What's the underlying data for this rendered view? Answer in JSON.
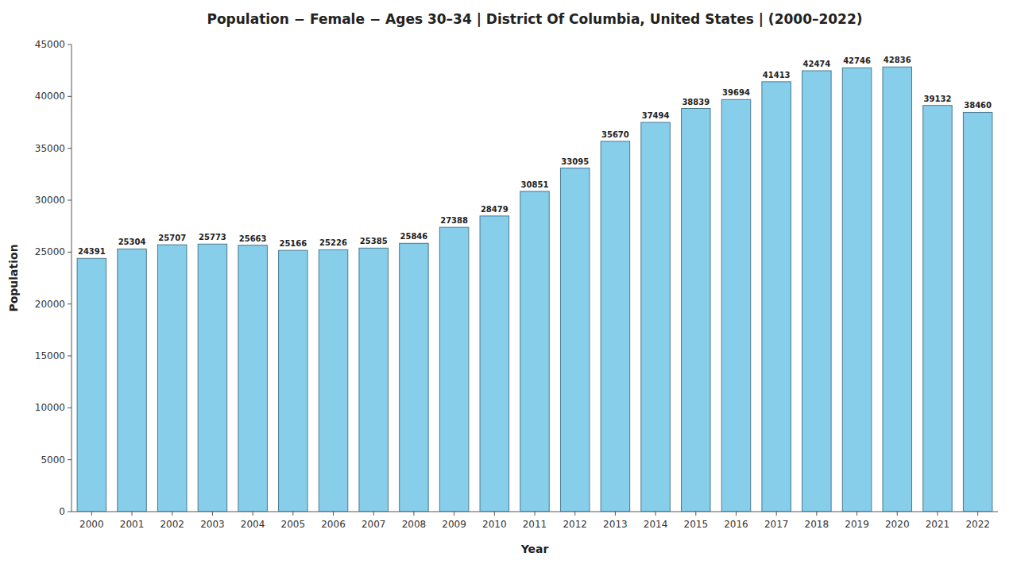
{
  "chart_data": {
    "type": "bar",
    "title": "Population − Female − Ages 30–34 | District Of Columbia, United States |  (2000–2022)",
    "x_label": "Year",
    "y_label": "Population",
    "categories": [
      "2000",
      "2001",
      "2002",
      "2003",
      "2004",
      "2005",
      "2006",
      "2007",
      "2008",
      "2009",
      "2010",
      "2011",
      "2012",
      "2013",
      "2014",
      "2015",
      "2016",
      "2017",
      "2018",
      "2019",
      "2020",
      "2021",
      "2022"
    ],
    "values": [
      24391,
      25304,
      25707,
      25773,
      25663,
      25166,
      25226,
      25385,
      25846,
      27388,
      28479,
      30851,
      33095,
      35670,
      37494,
      38839,
      39694,
      41413,
      42474,
      42746,
      42836,
      39132,
      38460
    ],
    "color": "#87ceeb",
    "ylim": [
      0,
      45000
    ],
    "yticks": [
      0,
      5000,
      10000,
      15000,
      20000,
      25000,
      30000,
      35000,
      40000,
      45000
    ],
    "grid": false,
    "data_labels": true
  }
}
